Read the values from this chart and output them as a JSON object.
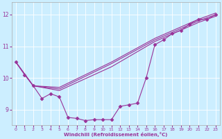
{
  "xlabel": "Windchill (Refroidissement éolien,°C)",
  "background_color": "#cceeff",
  "line_color": "#993399",
  "markersize": 2.5,
  "linewidth": 0.8,
  "ylim": [
    8.5,
    12.4
  ],
  "xlim": [
    -0.5,
    23.5
  ],
  "yticks": [
    9,
    10,
    11,
    12
  ],
  "xticks": [
    0,
    1,
    2,
    3,
    4,
    5,
    6,
    7,
    8,
    9,
    10,
    11,
    12,
    13,
    14,
    15,
    16,
    17,
    18,
    19,
    20,
    21,
    22,
    23
  ],
  "series": [
    {
      "x": [
        0,
        1,
        2,
        3,
        4,
        5,
        6,
        7,
        8,
        9,
        10,
        11,
        12,
        13,
        14,
        15,
        16,
        17,
        18,
        19,
        20,
        21,
        22,
        23
      ],
      "y": [
        10.5,
        10.1,
        9.75,
        9.35,
        9.5,
        9.4,
        8.75,
        8.72,
        8.65,
        8.68,
        8.68,
        8.68,
        9.1,
        9.15,
        9.2,
        10.0,
        11.05,
        11.2,
        11.4,
        11.5,
        11.7,
        11.85,
        11.85,
        12.0
      ],
      "marker": true
    },
    {
      "x": [
        0,
        2,
        5,
        11,
        16,
        21,
        23
      ],
      "y": [
        10.5,
        9.75,
        9.7,
        10.5,
        11.25,
        11.85,
        12.05
      ],
      "marker": false
    },
    {
      "x": [
        0,
        2,
        5,
        11,
        16,
        21,
        23
      ],
      "y": [
        10.5,
        9.75,
        9.65,
        10.45,
        11.2,
        11.8,
        12.0
      ],
      "marker": false
    },
    {
      "x": [
        0,
        2,
        5,
        11,
        16,
        21,
        23
      ],
      "y": [
        10.5,
        9.75,
        9.6,
        10.35,
        11.15,
        11.75,
        11.95
      ],
      "marker": false
    }
  ]
}
